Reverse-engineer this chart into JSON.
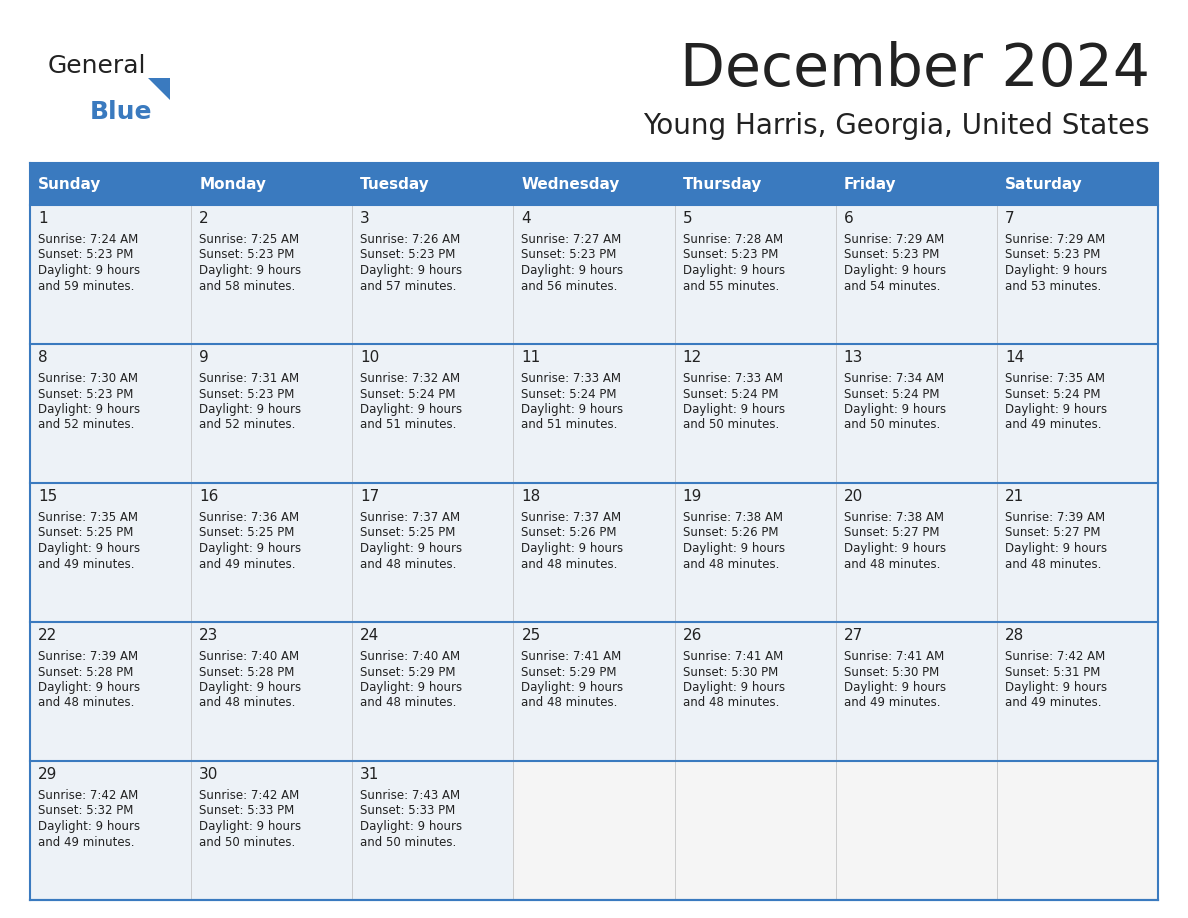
{
  "title": "December 2024",
  "subtitle": "Young Harris, Georgia, United States",
  "header_color": "#3a7abf",
  "header_text_color": "#ffffff",
  "cell_bg_color": "#edf2f7",
  "empty_cell_bg_color": "#f5f5f5",
  "border_color": "#3a7abf",
  "text_color": "#222222",
  "days_of_week": [
    "Sunday",
    "Monday",
    "Tuesday",
    "Wednesday",
    "Thursday",
    "Friday",
    "Saturday"
  ],
  "calendar_data": [
    [
      {
        "day": 1,
        "sunrise": "7:24 AM",
        "sunset": "5:23 PM",
        "daylight1": "9 hours",
        "daylight2": "and 59 minutes."
      },
      {
        "day": 2,
        "sunrise": "7:25 AM",
        "sunset": "5:23 PM",
        "daylight1": "9 hours",
        "daylight2": "and 58 minutes."
      },
      {
        "day": 3,
        "sunrise": "7:26 AM",
        "sunset": "5:23 PM",
        "daylight1": "9 hours",
        "daylight2": "and 57 minutes."
      },
      {
        "day": 4,
        "sunrise": "7:27 AM",
        "sunset": "5:23 PM",
        "daylight1": "9 hours",
        "daylight2": "and 56 minutes."
      },
      {
        "day": 5,
        "sunrise": "7:28 AM",
        "sunset": "5:23 PM",
        "daylight1": "9 hours",
        "daylight2": "and 55 minutes."
      },
      {
        "day": 6,
        "sunrise": "7:29 AM",
        "sunset": "5:23 PM",
        "daylight1": "9 hours",
        "daylight2": "and 54 minutes."
      },
      {
        "day": 7,
        "sunrise": "7:29 AM",
        "sunset": "5:23 PM",
        "daylight1": "9 hours",
        "daylight2": "and 53 minutes."
      }
    ],
    [
      {
        "day": 8,
        "sunrise": "7:30 AM",
        "sunset": "5:23 PM",
        "daylight1": "9 hours",
        "daylight2": "and 52 minutes."
      },
      {
        "day": 9,
        "sunrise": "7:31 AM",
        "sunset": "5:23 PM",
        "daylight1": "9 hours",
        "daylight2": "and 52 minutes."
      },
      {
        "day": 10,
        "sunrise": "7:32 AM",
        "sunset": "5:24 PM",
        "daylight1": "9 hours",
        "daylight2": "and 51 minutes."
      },
      {
        "day": 11,
        "sunrise": "7:33 AM",
        "sunset": "5:24 PM",
        "daylight1": "9 hours",
        "daylight2": "and 51 minutes."
      },
      {
        "day": 12,
        "sunrise": "7:33 AM",
        "sunset": "5:24 PM",
        "daylight1": "9 hours",
        "daylight2": "and 50 minutes."
      },
      {
        "day": 13,
        "sunrise": "7:34 AM",
        "sunset": "5:24 PM",
        "daylight1": "9 hours",
        "daylight2": "and 50 minutes."
      },
      {
        "day": 14,
        "sunrise": "7:35 AM",
        "sunset": "5:24 PM",
        "daylight1": "9 hours",
        "daylight2": "and 49 minutes."
      }
    ],
    [
      {
        "day": 15,
        "sunrise": "7:35 AM",
        "sunset": "5:25 PM",
        "daylight1": "9 hours",
        "daylight2": "and 49 minutes."
      },
      {
        "day": 16,
        "sunrise": "7:36 AM",
        "sunset": "5:25 PM",
        "daylight1": "9 hours",
        "daylight2": "and 49 minutes."
      },
      {
        "day": 17,
        "sunrise": "7:37 AM",
        "sunset": "5:25 PM",
        "daylight1": "9 hours",
        "daylight2": "and 48 minutes."
      },
      {
        "day": 18,
        "sunrise": "7:37 AM",
        "sunset": "5:26 PM",
        "daylight1": "9 hours",
        "daylight2": "and 48 minutes."
      },
      {
        "day": 19,
        "sunrise": "7:38 AM",
        "sunset": "5:26 PM",
        "daylight1": "9 hours",
        "daylight2": "and 48 minutes."
      },
      {
        "day": 20,
        "sunrise": "7:38 AM",
        "sunset": "5:27 PM",
        "daylight1": "9 hours",
        "daylight2": "and 48 minutes."
      },
      {
        "day": 21,
        "sunrise": "7:39 AM",
        "sunset": "5:27 PM",
        "daylight1": "9 hours",
        "daylight2": "and 48 minutes."
      }
    ],
    [
      {
        "day": 22,
        "sunrise": "7:39 AM",
        "sunset": "5:28 PM",
        "daylight1": "9 hours",
        "daylight2": "and 48 minutes."
      },
      {
        "day": 23,
        "sunrise": "7:40 AM",
        "sunset": "5:28 PM",
        "daylight1": "9 hours",
        "daylight2": "and 48 minutes."
      },
      {
        "day": 24,
        "sunrise": "7:40 AM",
        "sunset": "5:29 PM",
        "daylight1": "9 hours",
        "daylight2": "and 48 minutes."
      },
      {
        "day": 25,
        "sunrise": "7:41 AM",
        "sunset": "5:29 PM",
        "daylight1": "9 hours",
        "daylight2": "and 48 minutes."
      },
      {
        "day": 26,
        "sunrise": "7:41 AM",
        "sunset": "5:30 PM",
        "daylight1": "9 hours",
        "daylight2": "and 48 minutes."
      },
      {
        "day": 27,
        "sunrise": "7:41 AM",
        "sunset": "5:30 PM",
        "daylight1": "9 hours",
        "daylight2": "and 49 minutes."
      },
      {
        "day": 28,
        "sunrise": "7:42 AM",
        "sunset": "5:31 PM",
        "daylight1": "9 hours",
        "daylight2": "and 49 minutes."
      }
    ],
    [
      {
        "day": 29,
        "sunrise": "7:42 AM",
        "sunset": "5:32 PM",
        "daylight1": "9 hours",
        "daylight2": "and 49 minutes."
      },
      {
        "day": 30,
        "sunrise": "7:42 AM",
        "sunset": "5:33 PM",
        "daylight1": "9 hours",
        "daylight2": "and 50 minutes."
      },
      {
        "day": 31,
        "sunrise": "7:43 AM",
        "sunset": "5:33 PM",
        "daylight1": "9 hours",
        "daylight2": "and 50 minutes."
      },
      null,
      null,
      null,
      null
    ]
  ],
  "logo_general_color": "#222222",
  "logo_blue_color": "#3a7abf",
  "logo_triangle_color": "#3a7abf"
}
